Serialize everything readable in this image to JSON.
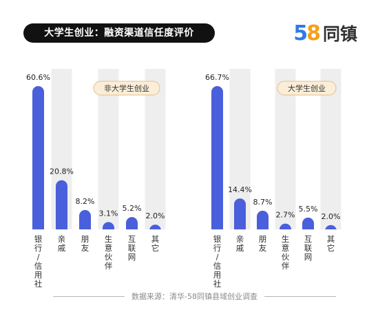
{
  "header": {
    "title": "大学生创业：融资渠道信任度评价",
    "logo_digit_5": "5",
    "logo_digit_8": "8",
    "logo_text": "同镇"
  },
  "footer": {
    "source": "数据来源：清华-58同镇县域创业调查"
  },
  "colors": {
    "bar": "#4a5fdc",
    "band": "#eeeeee",
    "badge_fill": "#fbeed8",
    "badge_stroke": "#e0bf8c"
  },
  "chart_data": [
    {
      "type": "bar",
      "title": "非大学生创业",
      "categories": [
        "银行/信用社",
        "亲戚",
        "朋友",
        "生意伙伴",
        "互联网",
        "其它"
      ],
      "category_lines": [
        [
          "银",
          "行",
          "/",
          "信",
          "用",
          "社"
        ],
        [
          "亲",
          "戚"
        ],
        [
          "朋",
          "友"
        ],
        [
          "生",
          "意",
          "伙",
          "伴"
        ],
        [
          "互",
          "联",
          "网"
        ],
        [
          "其",
          "它"
        ]
      ],
      "values": [
        60.6,
        20.8,
        8.2,
        3.1,
        5.2,
        2.0
      ],
      "value_labels": [
        "60.6%",
        "20.8%",
        "8.2%",
        "3.1%",
        "5.2%",
        "2.0%"
      ],
      "unit": "%",
      "ylim": [
        0,
        70
      ],
      "legend": "top-right"
    },
    {
      "type": "bar",
      "title": "大学生创业",
      "categories": [
        "银行/信用社",
        "亲戚",
        "朋友",
        "生意伙伴",
        "互联网",
        "其它"
      ],
      "category_lines": [
        [
          "银",
          "行",
          "/",
          "信",
          "用",
          "社"
        ],
        [
          "亲",
          "戚"
        ],
        [
          "朋",
          "友"
        ],
        [
          "生",
          "意",
          "伙",
          "伴"
        ],
        [
          "互",
          "联",
          "网"
        ],
        [
          "其",
          "它"
        ]
      ],
      "values": [
        66.7,
        14.4,
        8.7,
        2.7,
        5.5,
        2.0
      ],
      "value_labels": [
        "66.7%",
        "14.4%",
        "8.7%",
        "2.7%",
        "5.5%",
        "2.0%"
      ],
      "unit": "%",
      "ylim": [
        0,
        70
      ],
      "legend": "top-right"
    }
  ]
}
